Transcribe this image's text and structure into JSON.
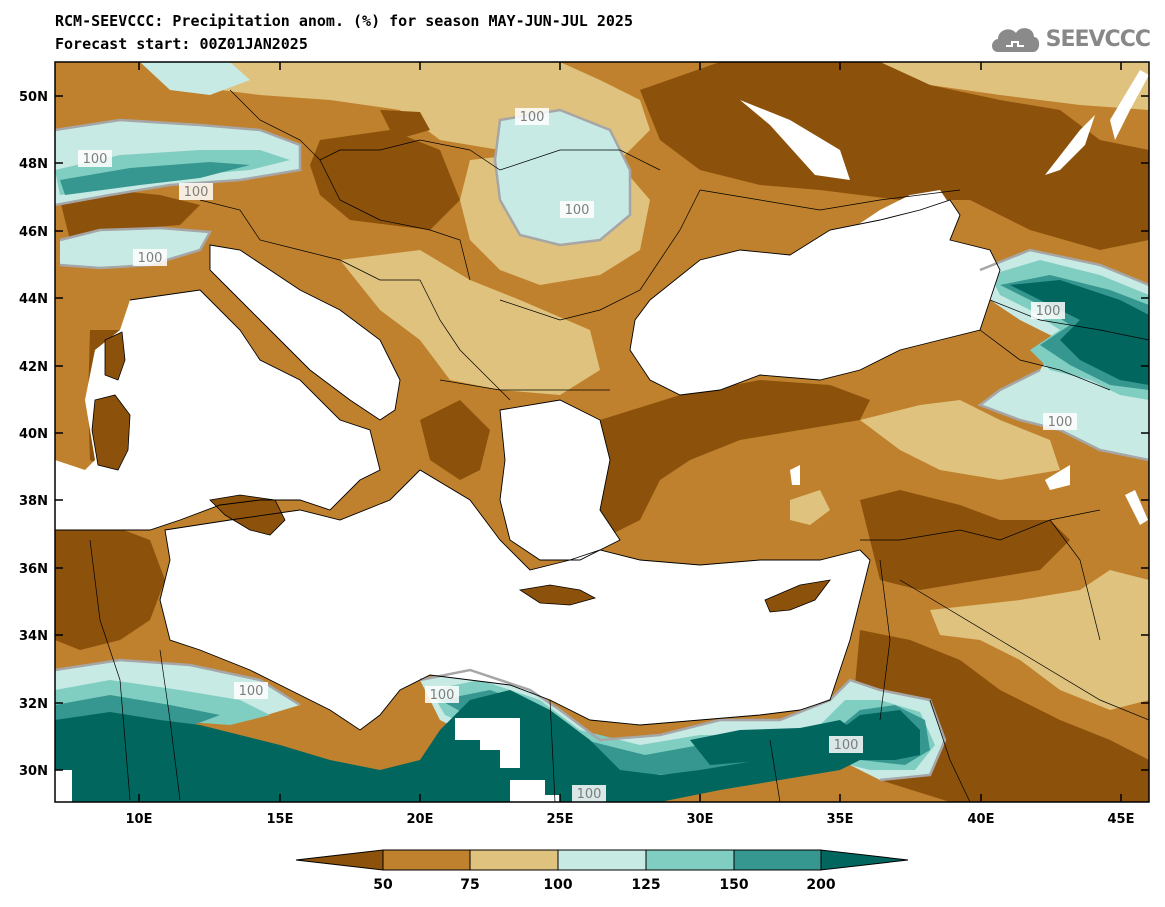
{
  "header": {
    "title_line1": "RCM-SEEVCCC: Precipitation anom. (%) for season MAY-JUN-JUL 2025",
    "title_line2": "Forecast start: 00Z01JAN2025"
  },
  "logo": {
    "text": "SEEVCCC",
    "icon": "cloud-icon"
  },
  "map": {
    "lat_labels": [
      "50N",
      "48N",
      "46N",
      "44N",
      "42N",
      "40N",
      "38N",
      "36N",
      "34N",
      "32N",
      "30N"
    ],
    "lon_labels": [
      "10E",
      "15E",
      "20E",
      "25E",
      "30E",
      "35E",
      "40E",
      "45E"
    ],
    "contour_labels": [
      "100",
      "100",
      "100",
      "100",
      "100",
      "100",
      "100",
      "100",
      "100",
      "100",
      "100",
      "100"
    ]
  },
  "colorbar": {
    "ticks": [
      "50",
      "75",
      "100",
      "125",
      "150",
      "200"
    ],
    "colors": [
      "#8c510a",
      "#bf812d",
      "#dfc27d",
      "#c7eae5",
      "#80cdc1",
      "#35978f",
      "#01665e"
    ]
  }
}
